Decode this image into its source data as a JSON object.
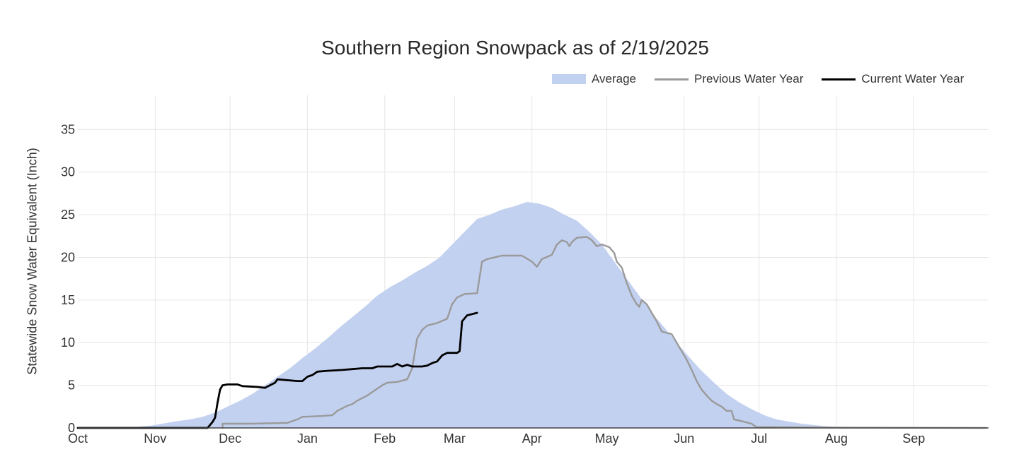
{
  "chart_data": {
    "type": "area",
    "title": "Southern Region Snowpack as of 2/19/2025",
    "ylabel": "Statewide Snow Water Equivalent (Inch)",
    "xlabel": "",
    "ylim": [
      0,
      39
    ],
    "yticks": [
      0,
      5,
      10,
      15,
      20,
      25,
      30,
      35
    ],
    "grid": true,
    "legend_position": "top-right",
    "x_ticks": [
      "Oct",
      "Nov",
      "Dec",
      "Jan",
      "Feb",
      "Mar",
      "Apr",
      "May",
      "Jun",
      "Jul",
      "Aug",
      "Sep"
    ],
    "series": [
      {
        "name": "Average",
        "style": "area",
        "color": "#c3d1f0",
        "points": [
          [
            0,
            0
          ],
          [
            20,
            0
          ],
          [
            30,
            0.3
          ],
          [
            40,
            0.8
          ],
          [
            45,
            1.0
          ],
          [
            50,
            1.3
          ],
          [
            55,
            1.8
          ],
          [
            60,
            2.5
          ],
          [
            65,
            3.2
          ],
          [
            70,
            4.0
          ],
          [
            75,
            5.0
          ],
          [
            80,
            6.0
          ],
          [
            85,
            7.0
          ],
          [
            90,
            8.2
          ],
          [
            95,
            9.3
          ],
          [
            100,
            10.5
          ],
          [
            105,
            11.8
          ],
          [
            110,
            13.0
          ],
          [
            115,
            14.2
          ],
          [
            120,
            15.5
          ],
          [
            125,
            16.5
          ],
          [
            130,
            17.3
          ],
          [
            135,
            18.2
          ],
          [
            140,
            19.0
          ],
          [
            145,
            20.0
          ],
          [
            150,
            21.5
          ],
          [
            155,
            23.0
          ],
          [
            160,
            24.5
          ],
          [
            165,
            25.0
          ],
          [
            170,
            25.6
          ],
          [
            175,
            26.0
          ],
          [
            180,
            26.5
          ],
          [
            185,
            26.3
          ],
          [
            190,
            25.8
          ],
          [
            195,
            25.0
          ],
          [
            200,
            24.3
          ],
          [
            205,
            23.0
          ],
          [
            210,
            21.5
          ],
          [
            215,
            19.5
          ],
          [
            220,
            17.5
          ],
          [
            225,
            15.5
          ],
          [
            230,
            13.5
          ],
          [
            235,
            11.8
          ],
          [
            240,
            10.0
          ],
          [
            245,
            8.3
          ],
          [
            250,
            6.7
          ],
          [
            255,
            5.3
          ],
          [
            260,
            4.0
          ],
          [
            265,
            3.0
          ],
          [
            270,
            2.2
          ],
          [
            275,
            1.5
          ],
          [
            280,
            1.0
          ],
          [
            290,
            0.5
          ],
          [
            300,
            0.2
          ],
          [
            310,
            0.05
          ],
          [
            330,
            0
          ],
          [
            364,
            0
          ]
        ]
      },
      {
        "name": "Previous Water Year",
        "style": "line",
        "color": "#9a9a9a",
        "points": [
          [
            58,
            0
          ],
          [
            58,
            0.5
          ],
          [
            70,
            0.5
          ],
          [
            84,
            0.6
          ],
          [
            88,
            1.0
          ],
          [
            90,
            1.3
          ],
          [
            98,
            1.4
          ],
          [
            102,
            1.5
          ],
          [
            104,
            2.0
          ],
          [
            106,
            2.3
          ],
          [
            108,
            2.6
          ],
          [
            110,
            2.8
          ],
          [
            112,
            3.2
          ],
          [
            114,
            3.5
          ],
          [
            116,
            3.8
          ],
          [
            118,
            4.2
          ],
          [
            120,
            4.6
          ],
          [
            122,
            5.0
          ],
          [
            124,
            5.3
          ],
          [
            128,
            5.4
          ],
          [
            132,
            5.7
          ],
          [
            134,
            7.0
          ],
          [
            136,
            10.5
          ],
          [
            138,
            11.5
          ],
          [
            140,
            12.0
          ],
          [
            144,
            12.3
          ],
          [
            148,
            12.8
          ],
          [
            150,
            14.5
          ],
          [
            152,
            15.3
          ],
          [
            155,
            15.7
          ],
          [
            160,
            15.8
          ],
          [
            162,
            19.5
          ],
          [
            164,
            19.8
          ],
          [
            170,
            20.2
          ],
          [
            178,
            20.2
          ],
          [
            182,
            19.5
          ],
          [
            184,
            18.9
          ],
          [
            186,
            19.8
          ],
          [
            190,
            20.3
          ],
          [
            192,
            21.5
          ],
          [
            194,
            22.0
          ],
          [
            196,
            21.8
          ],
          [
            197,
            21.3
          ],
          [
            198,
            21.8
          ],
          [
            200,
            22.3
          ],
          [
            204,
            22.4
          ],
          [
            206,
            22.0
          ],
          [
            208,
            21.3
          ],
          [
            210,
            21.5
          ],
          [
            213,
            21.2
          ],
          [
            215,
            20.5
          ],
          [
            216,
            19.5
          ],
          [
            218,
            18.8
          ],
          [
            220,
            17.0
          ],
          [
            222,
            15.5
          ],
          [
            224,
            14.5
          ],
          [
            225,
            14.2
          ],
          [
            226,
            15.0
          ],
          [
            228,
            14.5
          ],
          [
            230,
            13.5
          ],
          [
            232,
            12.5
          ],
          [
            234,
            11.3
          ],
          [
            238,
            11.0
          ],
          [
            240,
            10.0
          ],
          [
            242,
            9.0
          ],
          [
            244,
            8.0
          ],
          [
            246,
            6.8
          ],
          [
            248,
            5.5
          ],
          [
            250,
            4.5
          ],
          [
            252,
            3.8
          ],
          [
            254,
            3.2
          ],
          [
            256,
            2.8
          ],
          [
            258,
            2.5
          ],
          [
            260,
            2.0
          ],
          [
            262,
            2.0
          ],
          [
            263,
            1.0
          ],
          [
            266,
            0.8
          ],
          [
            270,
            0.5
          ],
          [
            272,
            0.1
          ],
          [
            275,
            0.1
          ],
          [
            300,
            0.05
          ],
          [
            364,
            0
          ]
        ]
      },
      {
        "name": "Current Water Year",
        "style": "line",
        "color": "#000000",
        "points": [
          [
            0,
            0
          ],
          [
            52,
            0
          ],
          [
            54,
            0.7
          ],
          [
            55,
            1.2
          ],
          [
            56,
            3.0
          ],
          [
            57,
            4.5
          ],
          [
            58,
            5.0
          ],
          [
            60,
            5.1
          ],
          [
            64,
            5.1
          ],
          [
            66,
            4.9
          ],
          [
            72,
            4.8
          ],
          [
            75,
            4.7
          ],
          [
            77,
            5.0
          ],
          [
            79,
            5.3
          ],
          [
            80,
            5.7
          ],
          [
            88,
            5.5
          ],
          [
            90,
            5.5
          ],
          [
            92,
            6.0
          ],
          [
            94,
            6.2
          ],
          [
            96,
            6.6
          ],
          [
            100,
            6.7
          ],
          [
            106,
            6.8
          ],
          [
            110,
            6.9
          ],
          [
            114,
            7.0
          ],
          [
            118,
            7.0
          ],
          [
            120,
            7.2
          ],
          [
            126,
            7.2
          ],
          [
            128,
            7.5
          ],
          [
            130,
            7.2
          ],
          [
            132,
            7.4
          ],
          [
            134,
            7.2
          ],
          [
            138,
            7.2
          ],
          [
            140,
            7.3
          ],
          [
            142,
            7.6
          ],
          [
            144,
            7.8
          ],
          [
            146,
            8.5
          ],
          [
            148,
            8.8
          ],
          [
            152,
            8.8
          ],
          [
            153,
            9.0
          ],
          [
            154,
            12.5
          ],
          [
            156,
            13.2
          ],
          [
            160,
            13.5
          ]
        ]
      }
    ]
  }
}
